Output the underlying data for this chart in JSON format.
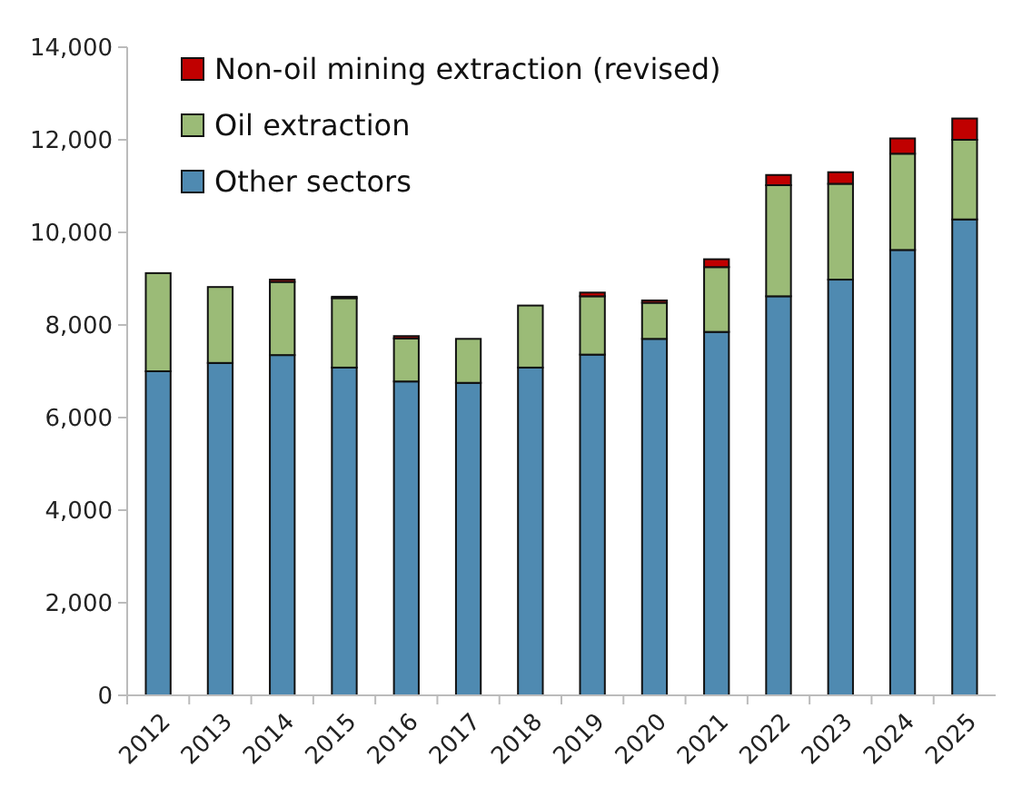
{
  "chart_data": {
    "type": "bar",
    "stacked": true,
    "categories": [
      "2012",
      "2013",
      "2014",
      "2015",
      "2016",
      "2017",
      "2018",
      "2019",
      "2020",
      "2021",
      "2022",
      "2023",
      "2024",
      "2025"
    ],
    "series": [
      {
        "name": "Other sectors",
        "color": "#4f8ab1",
        "values": [
          7000,
          7180,
          7350,
          7080,
          6780,
          6750,
          7080,
          7360,
          7700,
          7850,
          8620,
          8980,
          9620,
          10280
        ]
      },
      {
        "name": "Oil extraction",
        "color": "#9bbb77",
        "values": [
          2120,
          1640,
          1580,
          1500,
          930,
          950,
          1340,
          1260,
          780,
          1400,
          2400,
          2070,
          2080,
          1720
        ]
      },
      {
        "name": "Non-oil mining extraction (revised)",
        "color": "#c00000",
        "values": [
          0,
          0,
          50,
          30,
          50,
          0,
          0,
          80,
          50,
          170,
          220,
          250,
          330,
          460
        ]
      }
    ],
    "ylim": [
      0,
      14000
    ],
    "yticks": [
      {
        "value": 0,
        "label": "0"
      },
      {
        "value": 2000,
        "label": "2,000"
      },
      {
        "value": 4000,
        "label": "4,000"
      },
      {
        "value": 6000,
        "label": "6,000"
      },
      {
        "value": 8000,
        "label": "8,000"
      },
      {
        "value": 10000,
        "label": "10,000"
      },
      {
        "value": 12000,
        "label": "12,000"
      },
      {
        "value": 14000,
        "label": "14,000"
      }
    ],
    "legend": "top left",
    "grid": false
  }
}
